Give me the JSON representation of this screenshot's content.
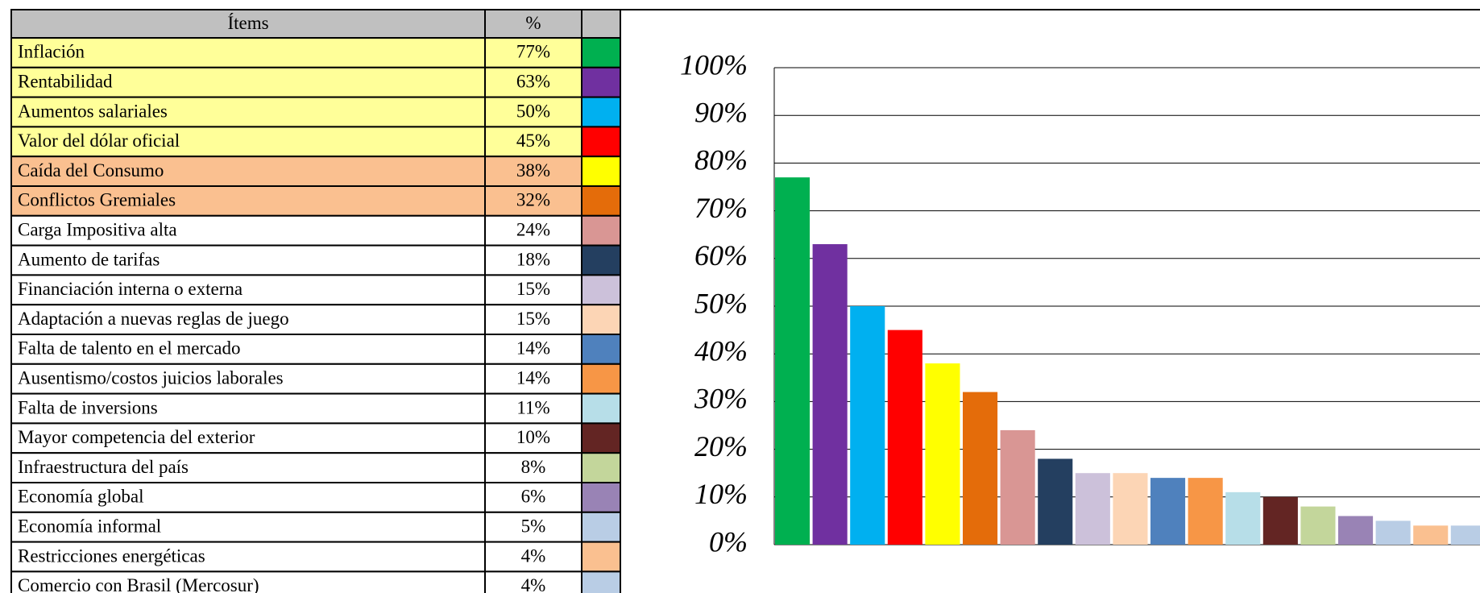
{
  "table": {
    "headers": [
      "Ítems",
      "%"
    ]
  },
  "chart_data": {
    "type": "bar",
    "categories": [
      "Inflación",
      "Rentabilidad",
      "Aumentos salariales",
      "Valor del dólar oficial",
      "Caída del Consumo",
      "Conflictos Gremiales",
      "Carga Impositiva alta",
      "Aumento de tarifas",
      "Financiación interna o externa",
      "Adaptación a nuevas reglas de juego",
      "Falta de talento en el mercado",
      "Ausentismo/costos juicios laborales",
      "Falta de inversions",
      "Mayor competencia del exterior",
      "Infraestructura del país",
      "Economía global",
      "Economía informal",
      "Restricciones energéticas",
      "Comercio con Brasil (Mercosur)"
    ],
    "values": [
      77,
      63,
      50,
      45,
      38,
      32,
      24,
      18,
      15,
      15,
      14,
      14,
      11,
      10,
      8,
      6,
      5,
      4,
      4
    ],
    "value_labels": [
      "77%",
      "63%",
      "50%",
      "45%",
      "38%",
      "32%",
      "24%",
      "18%",
      "15%",
      "15%",
      "14%",
      "14%",
      "11%",
      "10%",
      "8%",
      "6%",
      "5%",
      "4%",
      "4%"
    ],
    "colors": [
      "#00b050",
      "#7030a0",
      "#00b0f0",
      "#ff0000",
      "#ffff00",
      "#e46c0a",
      "#d99694",
      "#243f60",
      "#ccc1da",
      "#fcd5b5",
      "#4f81bd",
      "#f79646",
      "#b7dee8",
      "#632523",
      "#c3d69b",
      "#9983b5",
      "#b9cde5",
      "#fac090",
      "#b9cde5"
    ],
    "row_colors": [
      "#ffff99",
      "#ffff99",
      "#ffff99",
      "#ffff99",
      "#fac090",
      "#fac090",
      "#ffffff",
      "#ffffff",
      "#ffffff",
      "#ffffff",
      "#ffffff",
      "#ffffff",
      "#ffffff",
      "#ffffff",
      "#ffffff",
      "#ffffff",
      "#ffffff",
      "#ffffff",
      "#ffffff"
    ],
    "header_color": "#c0c0c0",
    "ylim": [
      0,
      100
    ],
    "yticks": [
      {
        "value": 0,
        "label": "0%"
      },
      {
        "value": 10,
        "label": "10%"
      },
      {
        "value": 20,
        "label": "20%"
      },
      {
        "value": 30,
        "label": "30%"
      },
      {
        "value": 40,
        "label": "40%"
      },
      {
        "value": 50,
        "label": "50%"
      },
      {
        "value": 60,
        "label": "60%"
      },
      {
        "value": 70,
        "label": "70%"
      },
      {
        "value": 80,
        "label": "80%"
      },
      {
        "value": 90,
        "label": "90%"
      },
      {
        "value": 100,
        "label": "100%"
      }
    ],
    "grid": true
  }
}
